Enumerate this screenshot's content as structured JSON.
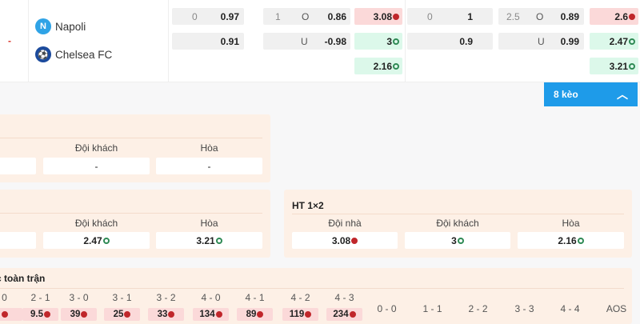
{
  "match": {
    "status": "-",
    "home": "Napoli",
    "away": "Chelsea FC"
  },
  "odds": {
    "ft_hdp": {
      "line": "0",
      "home": "0.97",
      "away": "0.91"
    },
    "ft_ou": {
      "line": "1",
      "over": "O",
      "over_odds": "0.86",
      "under": "U",
      "under_odds": "-0.98"
    },
    "ft_1x2": {
      "home": "3.08",
      "away": "3",
      "draw": "2.16"
    },
    "h2_hdp": {
      "line": "0",
      "home": "1",
      "away": "0.9"
    },
    "h2_ou": {
      "line": "2.5",
      "over": "O",
      "over_odds": "0.89",
      "under": "U",
      "under_odds": "0.99"
    },
    "h2_1x2": {
      "home": "2.6",
      "away": "2.47",
      "draw": "3.21"
    }
  },
  "more_button": "8 kèo",
  "panel1": {
    "away_label": "Đội khách",
    "draw_label": "Hòa",
    "away": "-",
    "draw": "-"
  },
  "panel2": {
    "away_label": "Đội khách",
    "draw_label": "Hòa",
    "away": "2.47",
    "draw": "3.21"
  },
  "ht1x2": {
    "title": "HT 1×2",
    "home_label": "Đội nhà",
    "away_label": "Đội khách",
    "draw_label": "Hòa",
    "home": "3.08",
    "away": "3",
    "draw": "2.16"
  },
  "correct_score": {
    "title": "c toàn trận",
    "scores": [
      {
        "s": "0",
        "v": ""
      },
      {
        "s": "2 - 1",
        "v": "9.5"
      },
      {
        "s": "3 - 0",
        "v": "39"
      },
      {
        "s": "3 - 1",
        "v": "25"
      },
      {
        "s": "3 - 2",
        "v": "33"
      },
      {
        "s": "4 - 0",
        "v": "134"
      },
      {
        "s": "4 - 1",
        "v": "89"
      },
      {
        "s": "4 - 2",
        "v": "119"
      },
      {
        "s": "4 - 3",
        "v": "234"
      }
    ],
    "draws": [
      "0 - 0",
      "1 - 1",
      "2 - 2",
      "3 - 3",
      "4 - 4",
      "AOS"
    ]
  },
  "colors": {
    "accent": "#1e9be9",
    "down": "#c0262b",
    "up": "#2f8a55",
    "panel": "#fdf0e6"
  }
}
